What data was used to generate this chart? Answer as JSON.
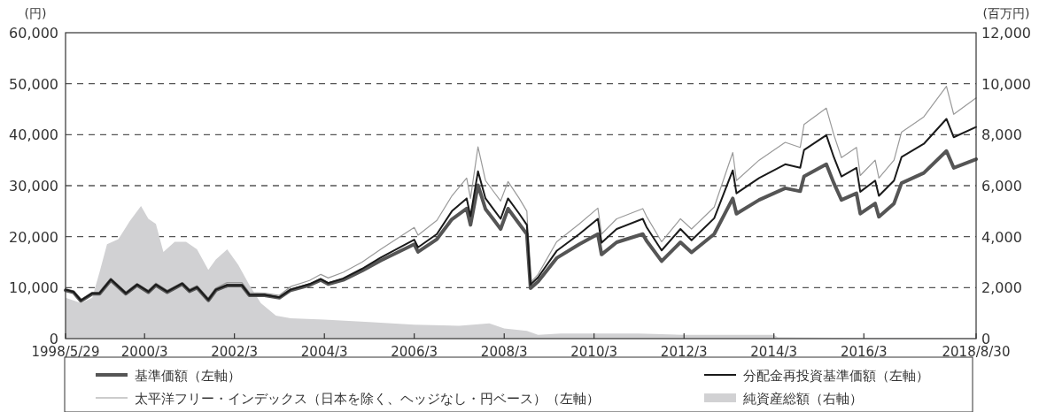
{
  "chart_data": {
    "type": "line",
    "ylabel": "(円)",
    "y2label": "(百万円)",
    "legend": "bottom",
    "grid": "y",
    "line_style": "solid",
    "marker": "none",
    "xlim": [
      "1998-05-29",
      "2018-08-30"
    ],
    "xticks": [
      {
        "value": "1998-05-29",
        "label": "1998/5/29"
      },
      {
        "value": "2000-03",
        "label": "2000/3"
      },
      {
        "value": "2002-03",
        "label": "2002/3"
      },
      {
        "value": "2004-03",
        "label": "2004/3"
      },
      {
        "value": "2006-03",
        "label": "2006/3"
      },
      {
        "value": "2008-03",
        "label": "2008/3"
      },
      {
        "value": "2010-03",
        "label": "2010/3"
      },
      {
        "value": "2012-03",
        "label": "2012/3"
      },
      {
        "value": "2014-03",
        "label": "2014/3"
      },
      {
        "value": "2016-03",
        "label": "2016/3"
      },
      {
        "value": "2018-08-30",
        "label": "2018/8/30"
      }
    ],
    "ylim": [
      0,
      60000
    ],
    "yticks": [
      {
        "value": 0,
        "label": "0"
      },
      {
        "value": 10000,
        "label": "10,000"
      },
      {
        "value": 20000,
        "label": "20,000"
      },
      {
        "value": 30000,
        "label": "30,000"
      },
      {
        "value": 40000,
        "label": "40,000"
      },
      {
        "value": 50000,
        "label": "50,000"
      },
      {
        "value": 60000,
        "label": "60,000"
      }
    ],
    "y2lim": [
      0,
      12000
    ],
    "y2ticks": [
      {
        "value": 0,
        "label": "0"
      },
      {
        "value": 2000,
        "label": "2,000"
      },
      {
        "value": 4000,
        "label": "4,000"
      },
      {
        "value": 6000,
        "label": "6,000"
      },
      {
        "value": 8000,
        "label": "8,000"
      },
      {
        "value": 10000,
        "label": "10,000"
      },
      {
        "value": 12000,
        "label": "12,000"
      }
    ],
    "x": [
      "1998-05-29",
      "1998-08",
      "1998-10",
      "1999-01",
      "1999-03",
      "1999-06",
      "1999-10",
      "2000-01",
      "2000-04",
      "2000-06",
      "2000-09",
      "2001-01",
      "2001-03",
      "2001-05",
      "2001-08",
      "2001-10",
      "2002-01",
      "2002-05",
      "2002-07",
      "2002-11",
      "2003-03",
      "2003-06",
      "2003-11",
      "2004-02",
      "2004-04",
      "2004-08",
      "2005-01",
      "2005-06",
      "2006-03",
      "2006-04",
      "2006-09",
      "2007-01",
      "2007-05",
      "2007-06",
      "2007-08",
      "2007-10",
      "2007-12",
      "2008-02",
      "2008-04",
      "2008-07",
      "2008-09",
      "2008-10",
      "2008-12",
      "2009-05",
      "2009-11",
      "2010-04",
      "2010-05",
      "2010-09",
      "2011-04",
      "2011-05",
      "2011-09",
      "2012-02",
      "2012-05",
      "2012-11",
      "2013-04",
      "2013-05",
      "2013-11",
      "2014-06",
      "2014-10",
      "2014-11",
      "2015-05",
      "2015-07",
      "2015-09",
      "2016-01",
      "2016-02",
      "2016-06",
      "2016-07",
      "2016-11",
      "2017-01",
      "2017-07",
      "2018-01",
      "2018-03",
      "2018-08-30"
    ],
    "series": [
      {
        "name": "純資産総額（右軸）",
        "type": "area",
        "axis": "y2",
        "color": "#d1d1d3",
        "x": [
          "1998-05-29",
          "1998-10",
          "1999-01",
          "1999-03",
          "1999-05",
          "1999-08",
          "1999-11",
          "2000-02",
          "2000-04",
          "2000-06",
          "2000-08",
          "2000-11",
          "2001-02",
          "2001-05",
          "2001-08",
          "2001-10",
          "2002-01",
          "2002-04",
          "2002-07",
          "2002-10",
          "2003-02",
          "2003-06",
          "2004-03",
          "2005-03",
          "2006-03",
          "2007-03",
          "2007-11",
          "2008-03",
          "2008-09",
          "2008-12",
          "2009-06",
          "2010-03",
          "2011-03",
          "2012-03",
          "2013-03",
          "2014-03",
          "2014-04",
          "2016-03",
          "2018-08-30"
        ],
        "values": [
          1600,
          1400,
          1600,
          2600,
          3700,
          3900,
          4600,
          5200,
          4700,
          4500,
          3400,
          3800,
          3800,
          3500,
          2700,
          3100,
          3500,
          2900,
          2100,
          1400,
          900,
          800,
          750,
          650,
          550,
          500,
          600,
          400,
          300,
          150,
          200,
          200,
          200,
          150,
          150,
          150,
          50,
          30,
          20
        ]
      },
      {
        "name": "太平洋フリー・インデックス（日本を除く、ヘッジなし・円ベース）（左軸）",
        "color": "#9a9a9a",
        "values": [
          9600,
          9200,
          7600,
          9000,
          9000,
          11800,
          9100,
          10800,
          9400,
          10900,
          9500,
          11000,
          9700,
          10400,
          7900,
          9900,
          11000,
          11000,
          9000,
          8900,
          8500,
          10200,
          11400,
          12600,
          11900,
          13000,
          15000,
          17500,
          21800,
          20300,
          23200,
          28000,
          31500,
          27500,
          37600,
          31000,
          29000,
          27000,
          30800,
          27500,
          25000,
          11000,
          12600,
          19000,
          22500,
          25600,
          20500,
          23500,
          25500,
          24000,
          19000,
          23500,
          21500,
          25800,
          36500,
          31000,
          35000,
          38500,
          37500,
          42000,
          45200,
          40000,
          35500,
          37500,
          32000,
          35000,
          31500,
          35000,
          40500,
          43500,
          49500,
          44000,
          47200
        ]
      },
      {
        "name": "基準価額（左軸）",
        "color": "#555555",
        "values": [
          9500,
          9100,
          7400,
          8800,
          8800,
          11500,
          8800,
          10500,
          9100,
          10500,
          9100,
          10700,
          9300,
          10000,
          7500,
          9500,
          10400,
          10400,
          8500,
          8500,
          8000,
          9500,
          10500,
          11500,
          10700,
          11500,
          13300,
          15300,
          18500,
          17000,
          19500,
          23400,
          25500,
          22300,
          30100,
          25400,
          23500,
          21500,
          25500,
          22500,
          20500,
          9900,
          11200,
          15800,
          18500,
          20500,
          16500,
          18900,
          20500,
          19200,
          15200,
          18900,
          16900,
          20500,
          27500,
          24500,
          27200,
          29500,
          28900,
          31800,
          34200,
          30500,
          27200,
          28500,
          24500,
          26500,
          23900,
          26500,
          30500,
          32500,
          36800,
          33500,
          35200
        ]
      },
      {
        "name": "分配金再投資基準価額（左軸）",
        "color": "#1a1a1a",
        "values": [
          9600,
          9200,
          7500,
          8900,
          8900,
          11600,
          8900,
          10600,
          9200,
          10600,
          9200,
          10800,
          9400,
          10100,
          7600,
          9600,
          10500,
          10500,
          8600,
          8600,
          8100,
          9600,
          10700,
          11700,
          10900,
          11800,
          13700,
          15900,
          19400,
          17900,
          20500,
          25000,
          27500,
          24000,
          32800,
          27500,
          25500,
          23500,
          27500,
          24500,
          22300,
          10600,
          12000,
          17200,
          20500,
          23500,
          18800,
          21500,
          23500,
          21900,
          17300,
          21500,
          19300,
          23600,
          33000,
          28500,
          31500,
          34200,
          33500,
          37000,
          39900,
          35600,
          31800,
          33500,
          28800,
          31000,
          28000,
          31000,
          35600,
          38200,
          43100,
          39500,
          41500
        ]
      }
    ]
  }
}
